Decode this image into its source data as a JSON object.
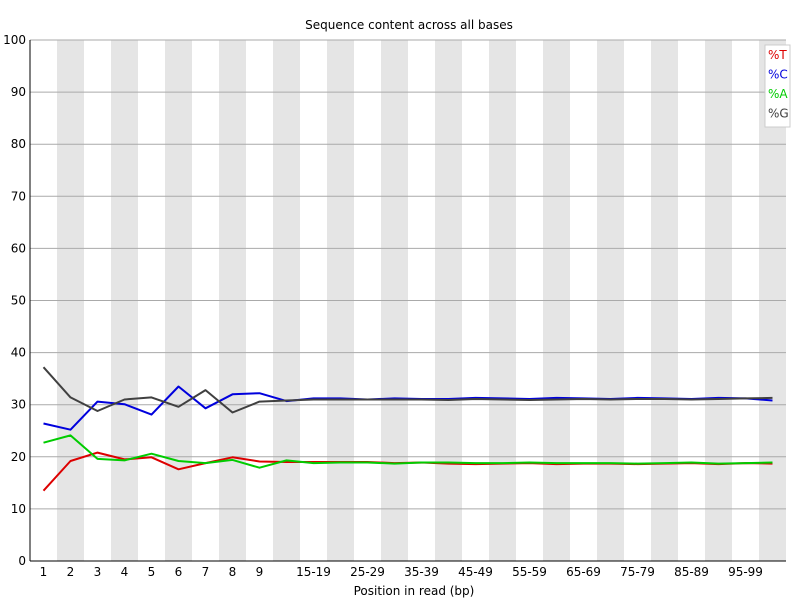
{
  "chart_data": {
    "type": "line",
    "title": "Sequence content across all bases",
    "xlabel": "Position in read (bp)",
    "ylabel": "",
    "ylim": [
      0,
      100
    ],
    "yticks": [
      0,
      10,
      20,
      30,
      40,
      50,
      60,
      70,
      80,
      90,
      100
    ],
    "grid": true,
    "legend_position": "top-right",
    "categories": [
      "1",
      "2",
      "3",
      "4",
      "5",
      "6",
      "7",
      "8",
      "9",
      "10-14",
      "15-19",
      "20-24",
      "25-29",
      "30-34",
      "35-39",
      "40-44",
      "45-49",
      "50-54",
      "55-59",
      "60-64",
      "65-69",
      "70-74",
      "75-79",
      "80-84",
      "85-89",
      "90-94",
      "95-99",
      "100-101"
    ],
    "tick_labels": [
      "1",
      "2",
      "3",
      "4",
      "5",
      "6",
      "7",
      "8",
      "9",
      "",
      "15-19",
      "",
      "25-29",
      "",
      "35-39",
      "",
      "45-49",
      "",
      "55-59",
      "",
      "65-69",
      "",
      "75-79",
      "",
      "85-89",
      "",
      "95-99",
      ""
    ],
    "series": [
      {
        "name": "%T",
        "color": "#dd0000",
        "values": [
          13.5,
          19.2,
          20.8,
          19.5,
          19.9,
          17.6,
          18.8,
          19.9,
          19.1,
          19.0,
          19.0,
          19.0,
          19.0,
          18.8,
          18.9,
          18.7,
          18.6,
          18.7,
          18.8,
          18.6,
          18.7,
          18.7,
          18.6,
          18.7,
          18.8,
          18.6,
          18.8,
          18.7
        ]
      },
      {
        "name": "%C",
        "color": "#0000dd",
        "values": [
          26.4,
          25.2,
          30.6,
          30.1,
          28.1,
          33.5,
          29.3,
          32.0,
          32.2,
          30.7,
          31.2,
          31.2,
          31.0,
          31.2,
          31.1,
          31.1,
          31.3,
          31.2,
          31.1,
          31.3,
          31.2,
          31.1,
          31.3,
          31.2,
          31.1,
          31.3,
          31.2,
          30.8
        ]
      },
      {
        "name": "%A",
        "color": "#00cc00",
        "values": [
          22.7,
          24.1,
          19.6,
          19.3,
          20.6,
          19.2,
          18.8,
          19.4,
          17.9,
          19.3,
          18.8,
          18.9,
          18.9,
          18.7,
          18.9,
          18.9,
          18.8,
          18.8,
          18.9,
          18.8,
          18.8,
          18.8,
          18.7,
          18.8,
          18.9,
          18.7,
          18.8,
          18.9
        ]
      },
      {
        "name": "%G",
        "color": "#404040",
        "values": [
          37.2,
          31.4,
          28.8,
          31.0,
          31.4,
          29.6,
          32.8,
          28.5,
          30.6,
          30.8,
          31.0,
          31.0,
          31.0,
          31.0,
          31.0,
          30.9,
          31.1,
          31.0,
          30.9,
          31.0,
          31.1,
          31.0,
          31.1,
          31.1,
          31.0,
          31.1,
          31.2,
          31.3
        ]
      }
    ]
  }
}
